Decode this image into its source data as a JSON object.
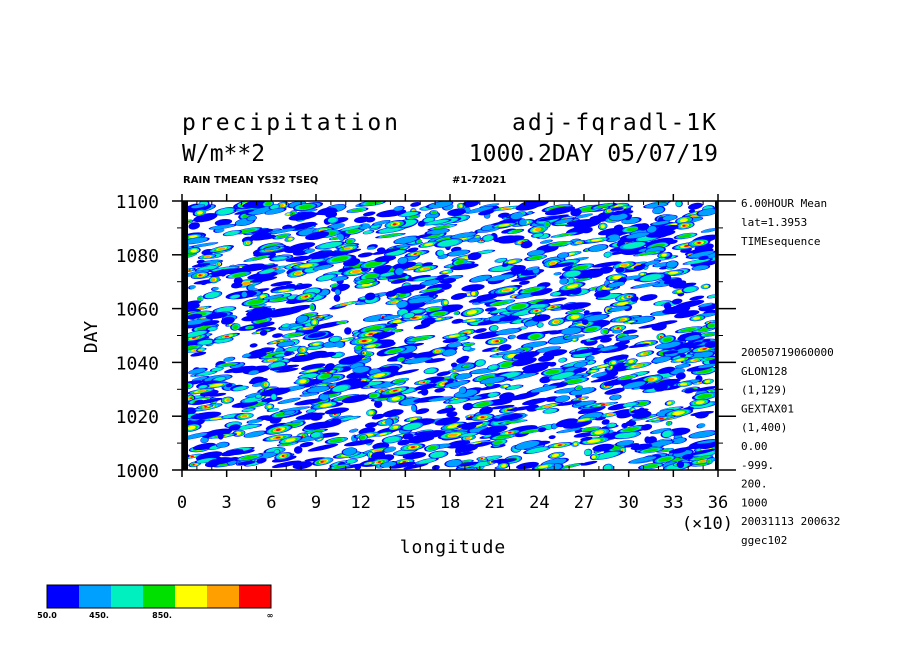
{
  "header": {
    "title_left": "precipitation",
    "title_right": "adj-fqradl-1K",
    "units": "W/m**2",
    "run_info": "1000.2DAY 05/07/19",
    "subtitle_left": "RAIN TMEAN YS32 TSEQ",
    "subtitle_right": "#1-72021"
  },
  "side_info": {
    "top": [
      "6.00HOUR Mean",
      "lat=1.3953",
      "TIMEsequence"
    ],
    "bottom": [
      "20050719060000",
      "GLON128",
      "(1,129)",
      "GEXTAX01",
      "(1,400)",
      "0.00",
      "-999.",
      "200.",
      "1000",
      "20031113 200632",
      "ggec102"
    ]
  },
  "colors": {
    "levels": [
      "#0000ff",
      "#00a0ff",
      "#00f0c0",
      "#00e000",
      "#ffff00",
      "#ffa000",
      "#ff0000"
    ]
  },
  "colorbar": {
    "labels": [
      "50.0",
      "450.",
      "850.",
      "∞"
    ]
  },
  "chart_data": {
    "type": "heatmap",
    "xlabel": "longitude",
    "ylabel": "DAY",
    "x_scale_note": "(×10)",
    "xlim": [
      0,
      36
    ],
    "ylim": [
      1000,
      1100
    ],
    "x_ticks": [
      0,
      3,
      6,
      9,
      12,
      15,
      18,
      21,
      24,
      27,
      30,
      33,
      36
    ],
    "y_ticks": [
      1000,
      1020,
      1040,
      1060,
      1080,
      1100
    ],
    "x_tick_labels": [
      "0",
      "3",
      "6",
      "9",
      "12",
      "15",
      "18",
      "21",
      "24",
      "27",
      "30",
      "33",
      "36"
    ],
    "y_tick_labels": [
      "1000",
      "1020",
      "1040",
      "1060",
      "1080",
      "1100"
    ],
    "contour_levels": [
      50,
      250,
      450,
      650,
      850,
      1050
    ],
    "grid": false
  }
}
